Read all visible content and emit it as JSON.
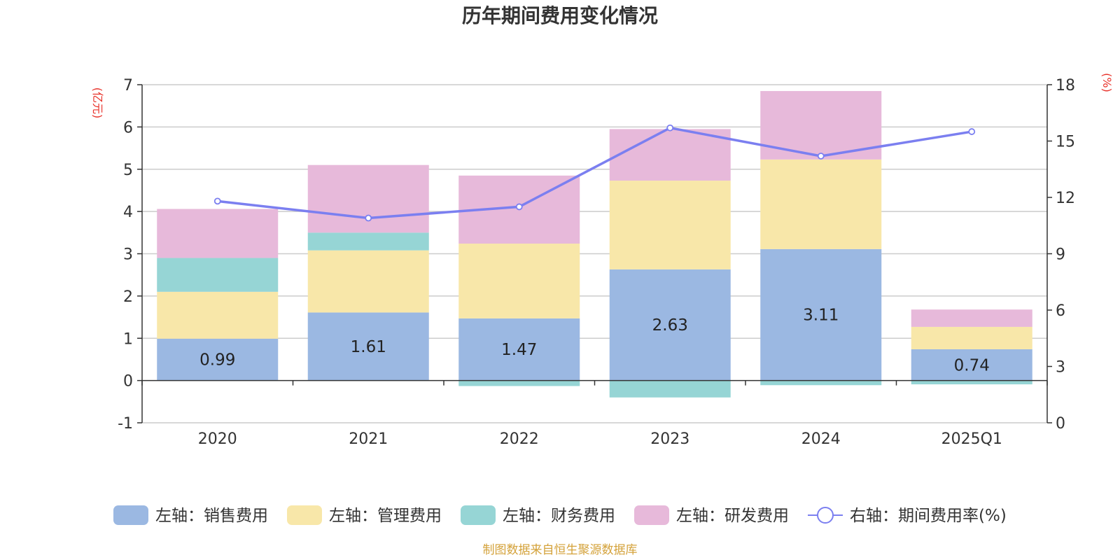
{
  "chart_data": {
    "type": "bar",
    "title": "历年期间费用变化情况",
    "categories": [
      "2020",
      "2021",
      "2022",
      "2023",
      "2024",
      "2025Q1"
    ],
    "left_axis": {
      "unit": "(亿元)",
      "ylim": [
        -1,
        7
      ],
      "ticks": [
        -1,
        0,
        1,
        2,
        3,
        4,
        5,
        6,
        7
      ]
    },
    "right_axis": {
      "unit": "(%)",
      "ylim": [
        0,
        18
      ],
      "ticks": [
        0,
        3,
        6,
        9,
        12,
        15,
        18
      ]
    },
    "series": [
      {
        "name": "左轴：销售费用",
        "axis": "left",
        "kind": "bar",
        "color": "#9bb8e2",
        "values": [
          0.99,
          1.61,
          1.47,
          2.63,
          3.11,
          0.74
        ],
        "show_labels": true
      },
      {
        "name": "左轴：管理费用",
        "axis": "left",
        "kind": "bar",
        "color": "#f8e7a9",
        "values": [
          1.11,
          1.47,
          1.77,
          2.1,
          2.12,
          0.53
        ],
        "show_labels": false
      },
      {
        "name": "左轴：财务费用",
        "axis": "left",
        "kind": "bar",
        "color": "#96d5d5",
        "values": [
          0.8,
          0.42,
          -0.13,
          -0.4,
          -0.11,
          -0.09
        ],
        "show_labels": false
      },
      {
        "name": "左轴：研发费用",
        "axis": "left",
        "kind": "bar",
        "color": "#e7b9da",
        "values": [
          1.16,
          1.6,
          1.61,
          1.22,
          1.62,
          0.41
        ],
        "show_labels": false
      },
      {
        "name": "右轴：期间费用率(%)",
        "axis": "right",
        "kind": "line",
        "color": "#7b7ff0",
        "values": [
          11.8,
          10.9,
          11.5,
          15.7,
          14.2,
          15.5
        ],
        "show_labels": false
      }
    ],
    "legend_position": "bottom",
    "grid": true
  },
  "source": "制图数据来自恒生聚源数据库"
}
